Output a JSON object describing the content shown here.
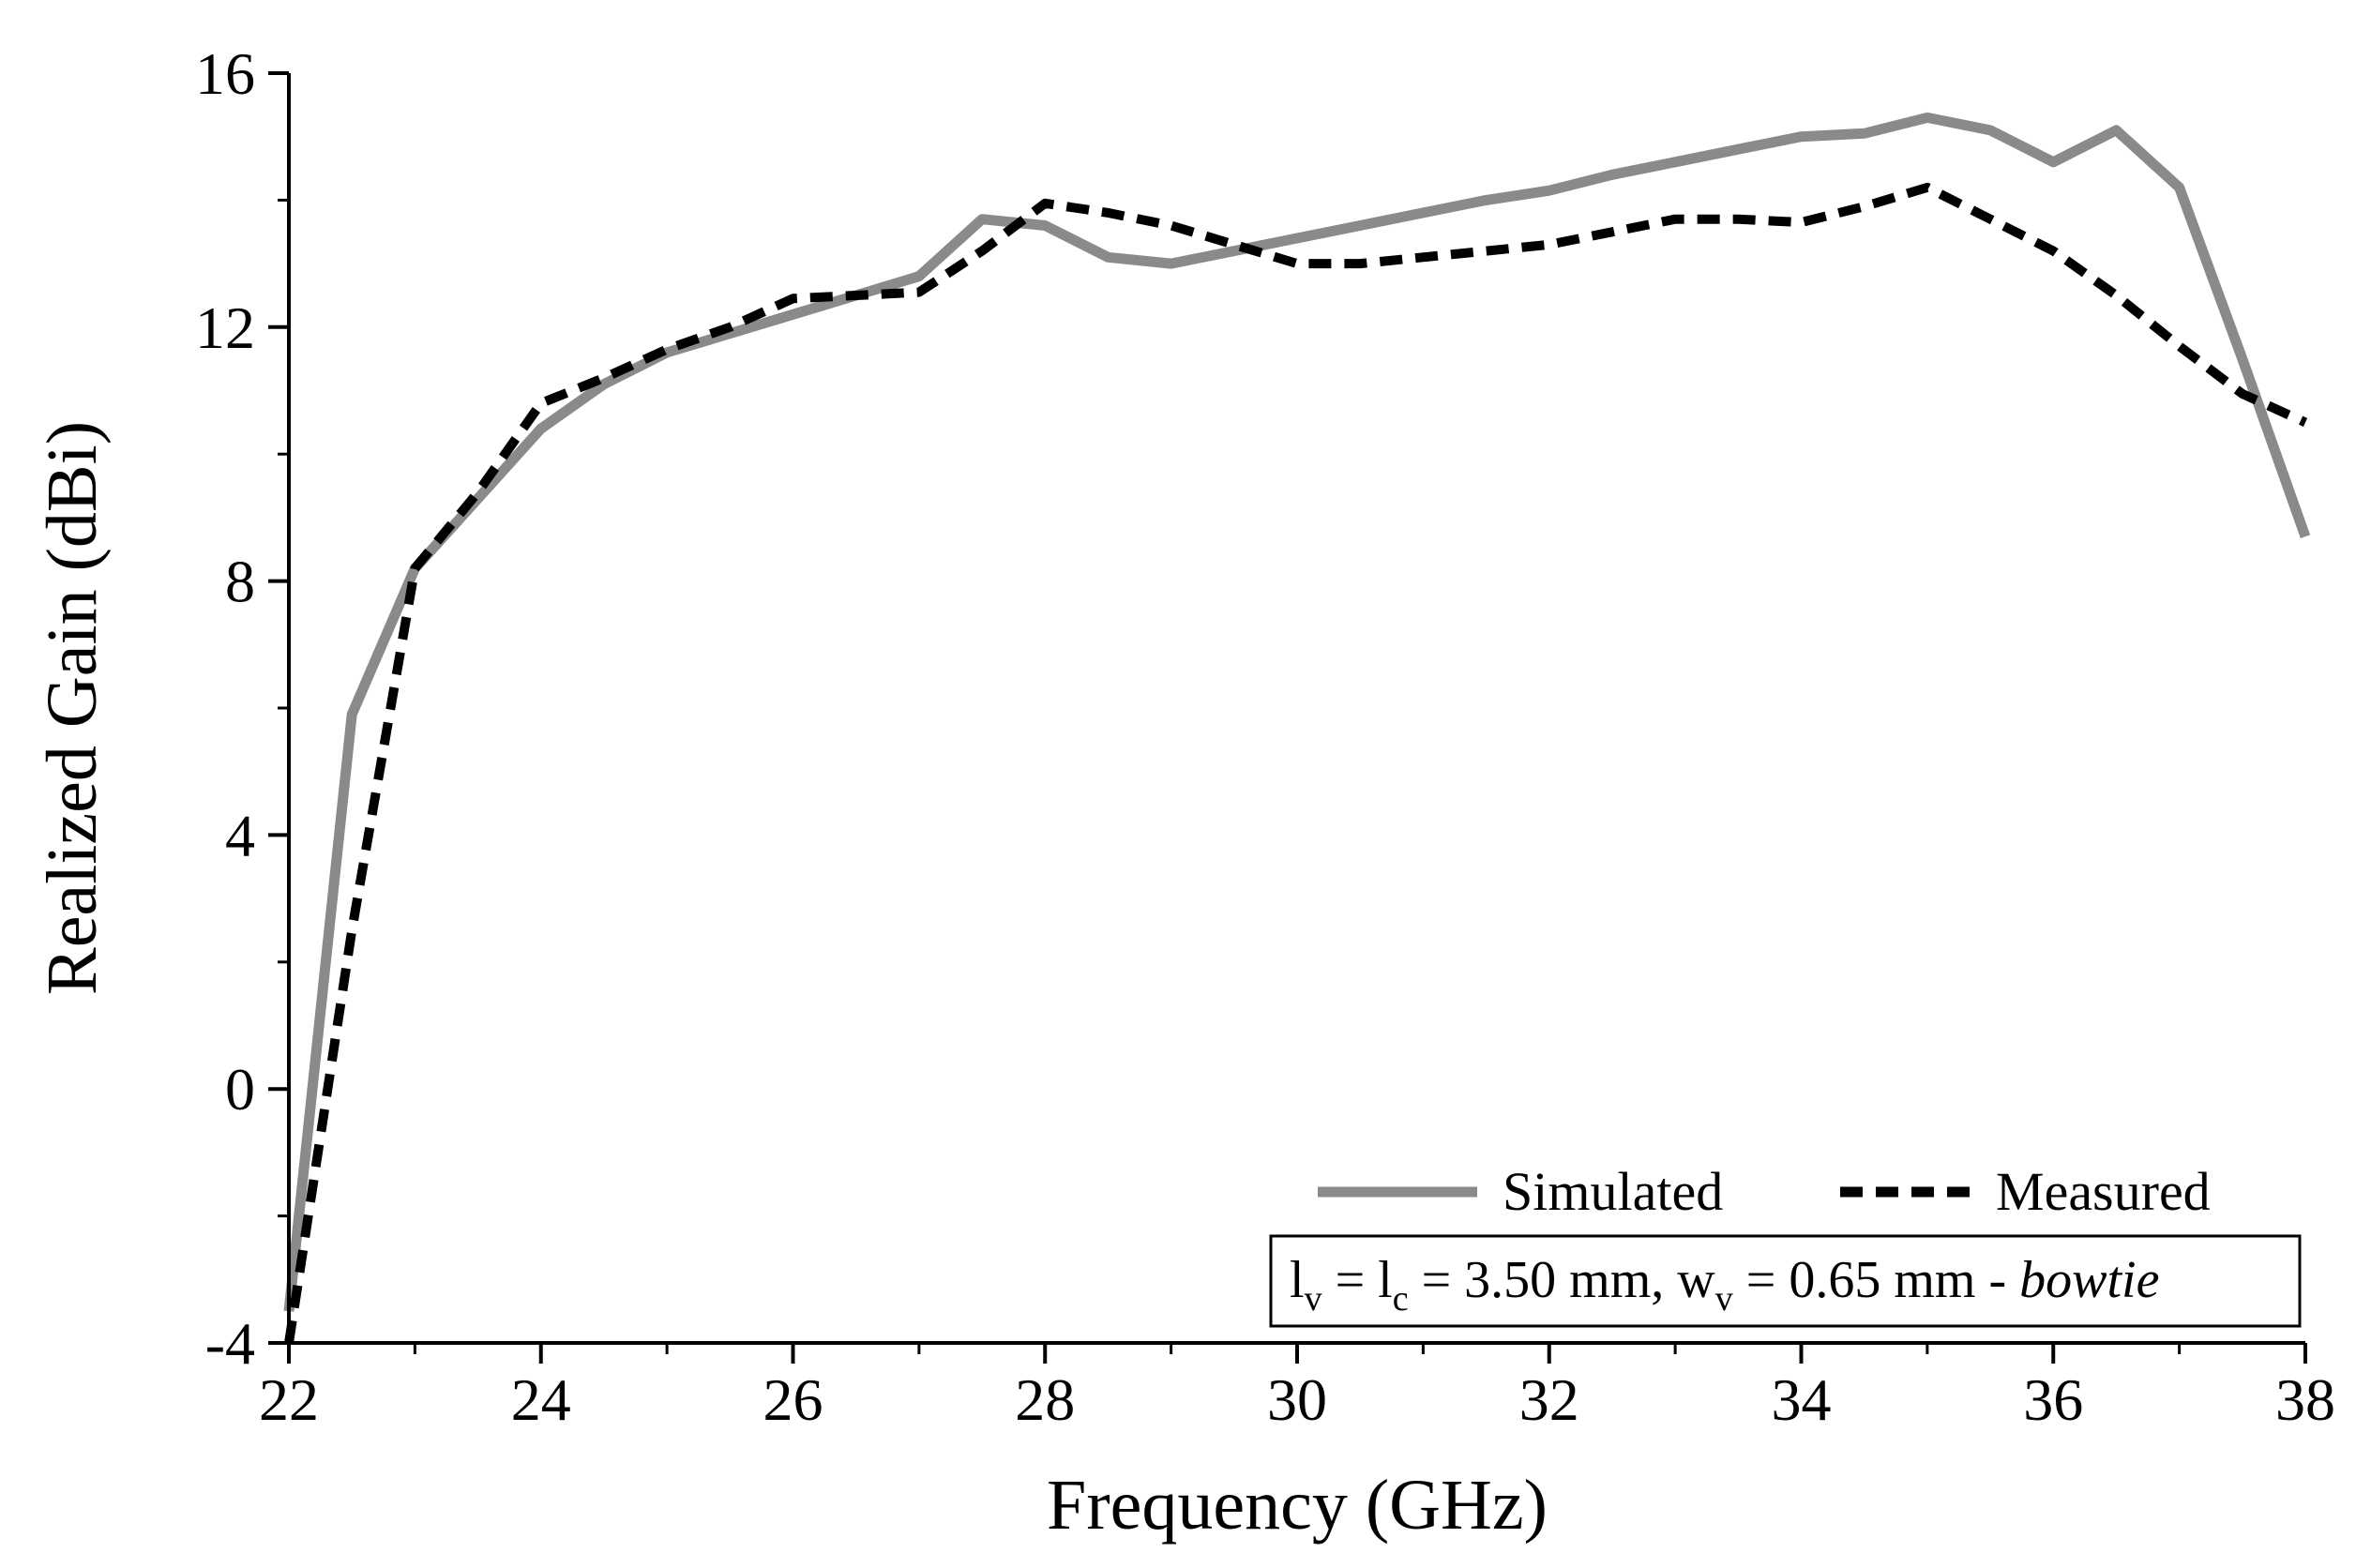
{
  "chart_data": {
    "type": "line",
    "title": "",
    "xlabel": "Frequency (GHz)",
    "ylabel": "Realized Gain (dBi)",
    "xlim": [
      22,
      38
    ],
    "ylim": [
      -4,
      16
    ],
    "xticks": [
      "22",
      "24",
      "26",
      "28",
      "30",
      "32",
      "34",
      "36",
      "38"
    ],
    "yticks": [
      "-4",
      "0",
      "4",
      "8",
      "12",
      "16"
    ],
    "grid": false,
    "legend_position": "bottom-right",
    "annotation": {
      "l_sym": "l",
      "v_sub": "v",
      "c_sub": "c",
      "eq": " = ",
      "value_l": " = 3.50 mm, ",
      "w_sym": "w",
      "value_w": " = 0.65 mm - ",
      "type": "bowtie"
    },
    "series": [
      {
        "name": "Simulated",
        "color": "#8a8a8a",
        "style": "solid",
        "x": [
          22,
          22.5,
          23,
          23.5,
          24,
          24.5,
          25,
          25.5,
          26,
          26.5,
          27,
          27.5,
          28,
          28.5,
          29,
          29.5,
          30,
          30.5,
          31,
          31.5,
          32,
          32.5,
          33,
          33.5,
          34,
          34.5,
          35,
          35.5,
          36,
          36.5,
          37,
          37.5,
          38
        ],
        "values": [
          -3.5,
          5.9,
          8.2,
          9.3,
          10.4,
          11.1,
          11.6,
          11.9,
          12.2,
          12.5,
          12.8,
          13.7,
          13.6,
          13.1,
          13.0,
          13.2,
          13.4,
          13.6,
          13.8,
          14.0,
          14.15,
          14.4,
          14.6,
          14.8,
          15.0,
          15.05,
          15.3,
          15.1,
          14.6,
          15.1,
          14.2,
          11.5,
          8.7
        ]
      },
      {
        "name": "Measured",
        "color": "#000000",
        "style": "dashed",
        "x": [
          22,
          22.5,
          23,
          23.5,
          24,
          24.5,
          25,
          25.5,
          26,
          26.5,
          27,
          27.5,
          28,
          28.5,
          29,
          29.5,
          30,
          30.5,
          31,
          31.5,
          32,
          32.5,
          33,
          33.5,
          34,
          34.5,
          35,
          35.5,
          36,
          36.5,
          37,
          37.5,
          38
        ],
        "values": [
          -4.0,
          2.5,
          8.2,
          9.4,
          10.8,
          11.2,
          11.65,
          12.0,
          12.45,
          12.5,
          12.55,
          13.2,
          13.95,
          13.8,
          13.6,
          13.3,
          13.0,
          13.0,
          13.1,
          13.2,
          13.3,
          13.5,
          13.7,
          13.7,
          13.65,
          13.9,
          14.2,
          13.7,
          13.2,
          12.5,
          11.7,
          10.95,
          10.5
        ]
      }
    ]
  }
}
